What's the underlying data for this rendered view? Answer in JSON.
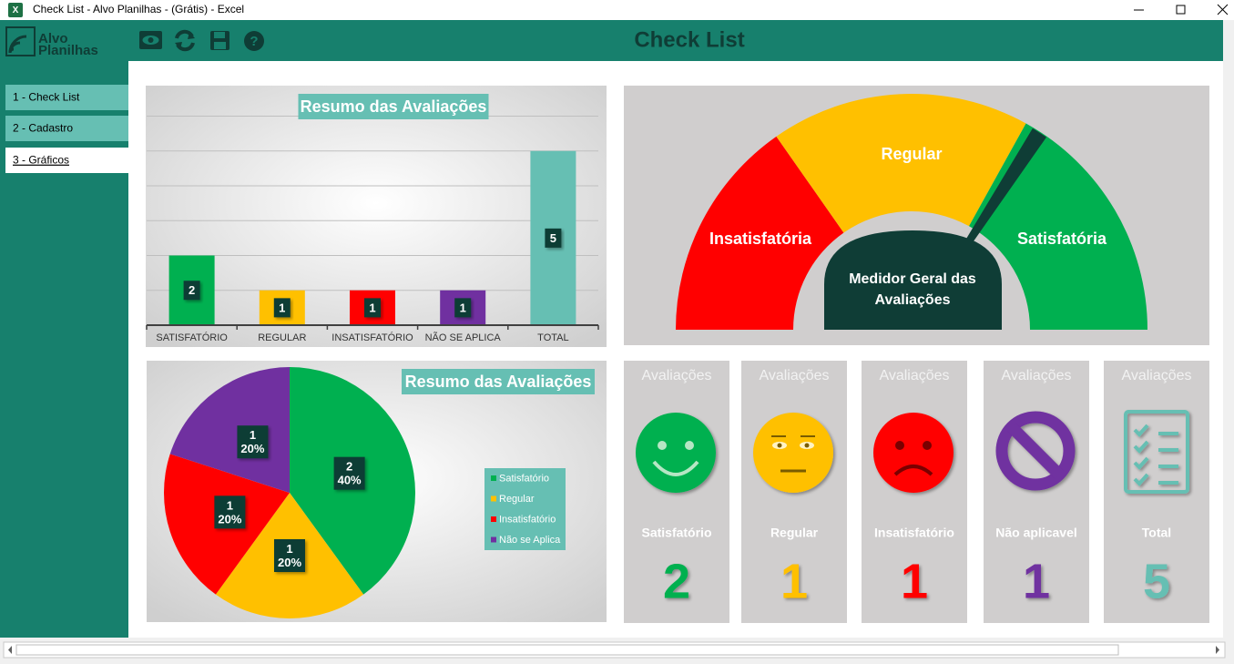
{
  "window": {
    "title": "Check List - Alvo Planilhas - (Grátis) - Excel"
  },
  "header": {
    "logo": [
      "Alvo",
      "Planilhas"
    ],
    "title": "Check List"
  },
  "sidebar": {
    "items": [
      "1 - Check List",
      "2 - Cadastro",
      "3 - Gráficos"
    ],
    "active": 2
  },
  "chart_data": [
    {
      "type": "bar",
      "title": "Resumo das Avaliações",
      "categories": [
        "SATISFATÓRIO",
        "REGULAR",
        "INSATISFATÓRIO",
        "NÃO SE APLICA",
        "TOTAL"
      ],
      "values": [
        2,
        1,
        1,
        1,
        5
      ],
      "colors": [
        "#00b050",
        "#ffc000",
        "#ff0000",
        "#7030a0",
        "#66bfb3"
      ],
      "ylim": [
        0,
        6
      ],
      "grid_values": [
        1,
        2,
        3,
        4,
        5,
        6
      ],
      "grid": true
    },
    {
      "type": "pie",
      "title": "Resumo das Avaliações",
      "categories": [
        "Satisfatório",
        "Regular",
        "Insatisfatório",
        "Não se Aplica"
      ],
      "values": [
        2,
        1,
        1,
        1
      ],
      "percent_labels": [
        "40%",
        "20%",
        "20%",
        "20%"
      ],
      "colors": [
        "#00b050",
        "#ffc000",
        "#ff0000",
        "#7030a0"
      ]
    }
  ],
  "gauge": {
    "title": [
      "Medidor Geral das",
      "Avaliações"
    ],
    "segments": [
      "Insatisfatória",
      "Regular",
      "Satisfatória"
    ]
  },
  "cards": [
    {
      "header": "Avaliações",
      "label": "Satisfatório",
      "value": 2,
      "color": "#00b050"
    },
    {
      "header": "Avaliações",
      "label": "Regular",
      "value": 1,
      "color": "#ffc000"
    },
    {
      "header": "Avaliações",
      "label": "Insatisfatório",
      "value": 1,
      "color": "#ff0000"
    },
    {
      "header": "Avaliações",
      "label": "Não aplicavel",
      "value": 1,
      "color": "#7030a0"
    },
    {
      "header": "Avaliações",
      "label": "Total",
      "value": 5,
      "color": "#66bfb3"
    }
  ]
}
